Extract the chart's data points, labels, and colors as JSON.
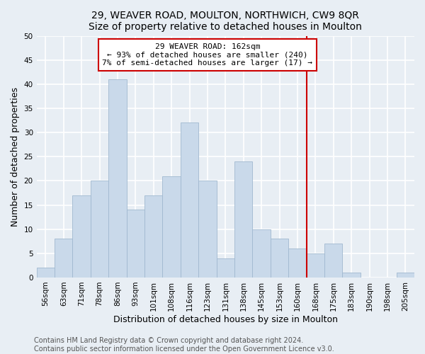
{
  "title": "29, WEAVER ROAD, MOULTON, NORTHWICH, CW9 8QR",
  "subtitle": "Size of property relative to detached houses in Moulton",
  "xlabel": "Distribution of detached houses by size in Moulton",
  "ylabel": "Number of detached properties",
  "bar_labels": [
    "56sqm",
    "63sqm",
    "71sqm",
    "78sqm",
    "86sqm",
    "93sqm",
    "101sqm",
    "108sqm",
    "116sqm",
    "123sqm",
    "131sqm",
    "138sqm",
    "145sqm",
    "153sqm",
    "160sqm",
    "168sqm",
    "175sqm",
    "183sqm",
    "190sqm",
    "198sqm",
    "205sqm"
  ],
  "bar_values": [
    2,
    8,
    17,
    20,
    41,
    14,
    17,
    21,
    32,
    20,
    4,
    24,
    10,
    8,
    6,
    5,
    7,
    1,
    0,
    0,
    1
  ],
  "bar_color": "#c9d9ea",
  "bar_edge_color": "#a0b8d0",
  "vline_x_idx": 14,
  "vline_color": "#cc0000",
  "annotation_line1": "29 WEAVER ROAD: 162sqm",
  "annotation_line2": "← 93% of detached houses are smaller (240)",
  "annotation_line3": "7% of semi-detached houses are larger (17) →",
  "annotation_box_color": "#ffffff",
  "annotation_box_edge": "#cc0000",
  "ylim": [
    0,
    50
  ],
  "yticks": [
    0,
    5,
    10,
    15,
    20,
    25,
    30,
    35,
    40,
    45,
    50
  ],
  "footer_line1": "Contains HM Land Registry data © Crown copyright and database right 2024.",
  "footer_line2": "Contains public sector information licensed under the Open Government Licence v3.0.",
  "bg_color": "#e8eef4",
  "plot_bg_color": "#e8eef4",
  "grid_color": "#ffffff",
  "title_fontsize": 10,
  "subtitle_fontsize": 9.5,
  "axis_label_fontsize": 9,
  "tick_fontsize": 7.5,
  "annotation_fontsize": 8,
  "footer_fontsize": 7
}
